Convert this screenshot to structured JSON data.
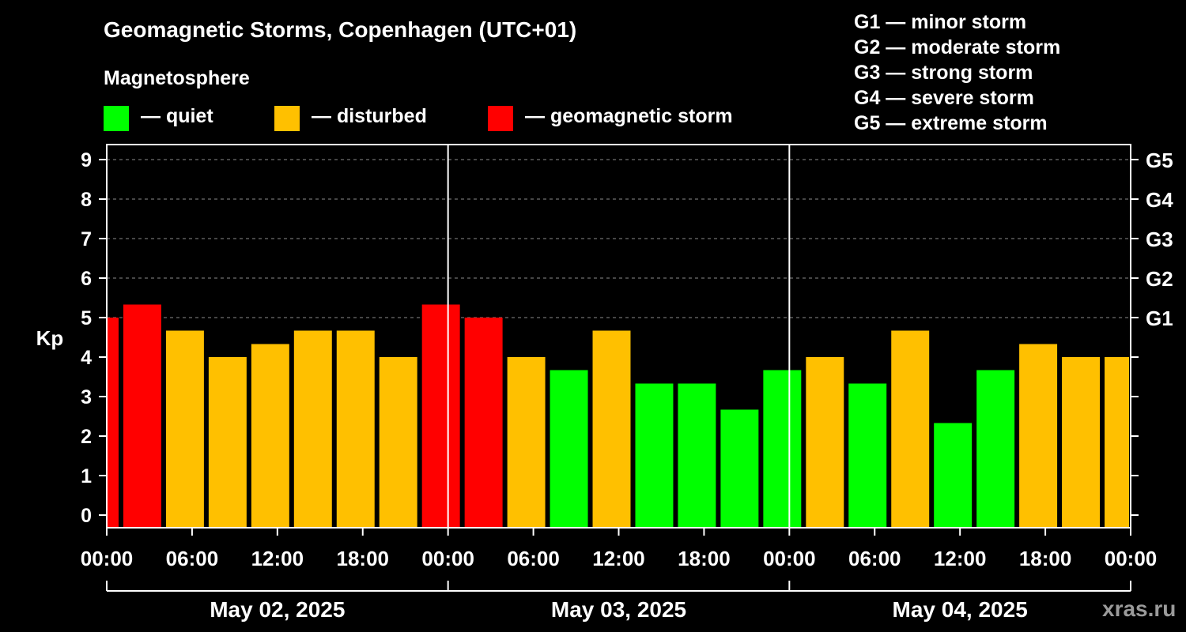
{
  "title": "Geomagnetic Storms, Copenhagen (UTC+01)",
  "magnetosphere_label": "Magnetosphere",
  "legend": [
    {
      "label": "— quiet",
      "color": "#00ff00"
    },
    {
      "label": "— disturbed",
      "color": "#ffc000"
    },
    {
      "label": "— geomagnetic storm",
      "color": "#ff0000"
    }
  ],
  "g_levels": [
    "G1 — minor storm",
    "G2 — moderate storm",
    "G3 — strong storm",
    "G4 — severe storm",
    "G5 — extreme storm"
  ],
  "watermark": "xras.ru",
  "chart_data": {
    "type": "bar",
    "ylabel": "Kp",
    "ylim": [
      0,
      9
    ],
    "yticks": [
      "0",
      "1",
      "2",
      "3",
      "4",
      "5",
      "6",
      "7",
      "8",
      "9"
    ],
    "right_ticks": [
      {
        "label": "G1",
        "value": 5
      },
      {
        "label": "G2",
        "value": 6
      },
      {
        "label": "G3",
        "value": 7
      },
      {
        "label": "G4",
        "value": 8
      },
      {
        "label": "G5",
        "value": 9
      }
    ],
    "xtick_labels": [
      "00:00",
      "06:00",
      "12:00",
      "18:00",
      "00:00",
      "06:00",
      "12:00",
      "18:00",
      "00:00",
      "06:00",
      "12:00",
      "18:00",
      "00:00"
    ],
    "dates": [
      "May 02, 2025",
      "May 03, 2025",
      "May 04, 2025"
    ],
    "grid": true,
    "bars": [
      {
        "start_hour": 0,
        "end_hour": 1,
        "kp": 5.0,
        "color": "#ff0000"
      },
      {
        "start_hour": 1,
        "end_hour": 4,
        "kp": 5.33,
        "color": "#ff0000"
      },
      {
        "start_hour": 4,
        "end_hour": 7,
        "kp": 4.67,
        "color": "#ffc000"
      },
      {
        "start_hour": 7,
        "end_hour": 10,
        "kp": 4.0,
        "color": "#ffc000"
      },
      {
        "start_hour": 10,
        "end_hour": 13,
        "kp": 4.33,
        "color": "#ffc000"
      },
      {
        "start_hour": 13,
        "end_hour": 16,
        "kp": 4.67,
        "color": "#ffc000"
      },
      {
        "start_hour": 16,
        "end_hour": 19,
        "kp": 4.67,
        "color": "#ffc000"
      },
      {
        "start_hour": 19,
        "end_hour": 22,
        "kp": 4.0,
        "color": "#ffc000"
      },
      {
        "start_hour": 22,
        "end_hour": 25,
        "kp": 5.33,
        "color": "#ff0000"
      },
      {
        "start_hour": 25,
        "end_hour": 28,
        "kp": 5.0,
        "color": "#ff0000"
      },
      {
        "start_hour": 28,
        "end_hour": 31,
        "kp": 4.0,
        "color": "#ffc000"
      },
      {
        "start_hour": 31,
        "end_hour": 34,
        "kp": 3.67,
        "color": "#00ff00"
      },
      {
        "start_hour": 34,
        "end_hour": 37,
        "kp": 4.67,
        "color": "#ffc000"
      },
      {
        "start_hour": 37,
        "end_hour": 40,
        "kp": 3.33,
        "color": "#00ff00"
      },
      {
        "start_hour": 40,
        "end_hour": 43,
        "kp": 3.33,
        "color": "#00ff00"
      },
      {
        "start_hour": 43,
        "end_hour": 46,
        "kp": 2.67,
        "color": "#00ff00"
      },
      {
        "start_hour": 46,
        "end_hour": 49,
        "kp": 3.67,
        "color": "#00ff00"
      },
      {
        "start_hour": 49,
        "end_hour": 52,
        "kp": 4.0,
        "color": "#ffc000"
      },
      {
        "start_hour": 52,
        "end_hour": 55,
        "kp": 3.33,
        "color": "#00ff00"
      },
      {
        "start_hour": 55,
        "end_hour": 58,
        "kp": 4.67,
        "color": "#ffc000"
      },
      {
        "start_hour": 58,
        "end_hour": 61,
        "kp": 2.33,
        "color": "#00ff00"
      },
      {
        "start_hour": 61,
        "end_hour": 64,
        "kp": 3.67,
        "color": "#00ff00"
      },
      {
        "start_hour": 64,
        "end_hour": 67,
        "kp": 4.33,
        "color": "#ffc000"
      },
      {
        "start_hour": 67,
        "end_hour": 70,
        "kp": 4.0,
        "color": "#ffc000"
      },
      {
        "start_hour": 70,
        "end_hour": 72,
        "kp": 4.0,
        "color": "#ffc000"
      }
    ]
  }
}
